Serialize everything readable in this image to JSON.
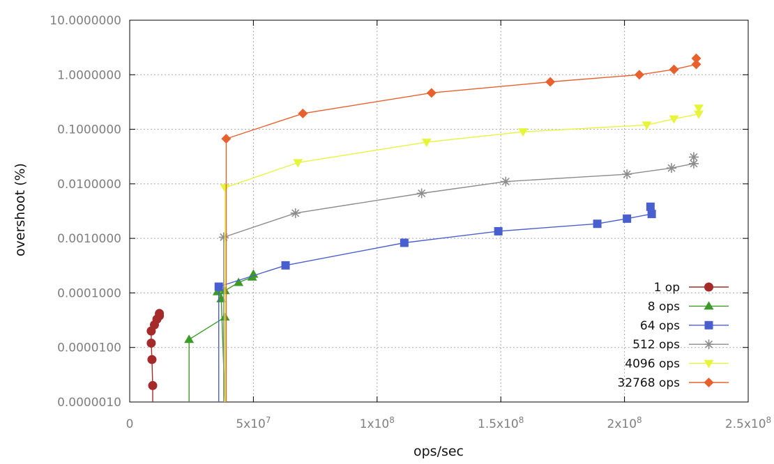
{
  "chart_data": {
    "type": "line",
    "title": "",
    "xlabel": "ops/sec",
    "ylabel": "overshoot (%)",
    "xscale": "linear",
    "yscale": "log",
    "xlim": [
      0,
      250000000
    ],
    "ylim": [
      1e-06,
      10
    ],
    "grid": true,
    "legend_position": "bottom-right",
    "x_ticks": [
      0,
      50000000,
      100000000,
      150000000,
      200000000,
      250000000
    ],
    "x_tick_labels": [
      {
        "base": "0",
        "sup": ""
      },
      {
        "base": "5x10",
        "sup": "7"
      },
      {
        "base": "1x10",
        "sup": "8"
      },
      {
        "base": "1.5x10",
        "sup": "8"
      },
      {
        "base": "2x10",
        "sup": "8"
      },
      {
        "base": "2.5x10",
        "sup": "8"
      }
    ],
    "y_ticks": [
      1e-06,
      1e-05,
      0.0001,
      0.001,
      0.01,
      0.1,
      1,
      10
    ],
    "y_tick_labels": [
      "0.0000010",
      "0.0000100",
      "0.0001000",
      "0.0010000",
      "0.0100000",
      "0.1000000",
      "1.0000000",
      "10.0000000"
    ],
    "series": [
      {
        "name": "1 op",
        "color": "#a52a2a",
        "marker": "circle",
        "x": [
          9300000,
          9300000,
          9000000,
          8700000,
          8700000,
          10000000,
          11000000,
          12000000,
          12000000
        ],
        "y": [
          1e-06,
          2e-06,
          6e-06,
          1.2e-05,
          2e-05,
          2.6e-05,
          3.3e-05,
          3.8e-05,
          4.2e-05
        ]
      },
      {
        "name": "8 ops",
        "color": "#3c9b28",
        "marker": "triangle-up",
        "x": [
          24000000,
          24000000,
          38500000,
          38500000,
          37000000,
          35500000,
          38500000,
          44000000,
          49500000,
          50000000
        ],
        "y": [
          1e-06,
          1.4e-05,
          3.6e-05,
          1e-06,
          7.8e-05,
          0.000105,
          0.00011,
          0.000155,
          0.000195,
          0.00022
        ]
      },
      {
        "name": "64 ops",
        "color": "#4a5fcf",
        "marker": "square",
        "x": [
          36000000,
          36000000,
          63000000,
          111000000,
          149000000,
          189000000,
          201000000,
          211000000,
          210500000
        ],
        "y": [
          1e-06,
          0.00013,
          0.00032,
          0.00083,
          0.00135,
          0.00185,
          0.0023,
          0.0028,
          0.0038
        ]
      },
      {
        "name": "512 ops",
        "color": "#8c8c8c",
        "marker": "star",
        "x": [
          38000000,
          38000000,
          67000000,
          118000000,
          152000000,
          201000000,
          219000000,
          228000000,
          228000000
        ],
        "y": [
          1e-06,
          0.00105,
          0.0029,
          0.0067,
          0.011,
          0.015,
          0.0195,
          0.0235,
          0.031
        ]
      },
      {
        "name": "4096 ops",
        "color": "#e6f53c",
        "marker": "triangle-down",
        "x": [
          38500000,
          38500000,
          68000000,
          120000000,
          159000000,
          209000000,
          220000000,
          230000000,
          230000000
        ],
        "y": [
          1e-06,
          0.0085,
          0.0245,
          0.058,
          0.09,
          0.12,
          0.155,
          0.19,
          0.245
        ]
      },
      {
        "name": "32768 ops",
        "color": "#e8602c",
        "marker": "diamond",
        "x": [
          39000000,
          39000000,
          70000000,
          122000000,
          170000000,
          206000000,
          220000000,
          229000000,
          229000000
        ],
        "y": [
          1e-06,
          0.067,
          0.195,
          0.465,
          0.74,
          1.0,
          1.25,
          1.55,
          2.0
        ]
      }
    ]
  }
}
